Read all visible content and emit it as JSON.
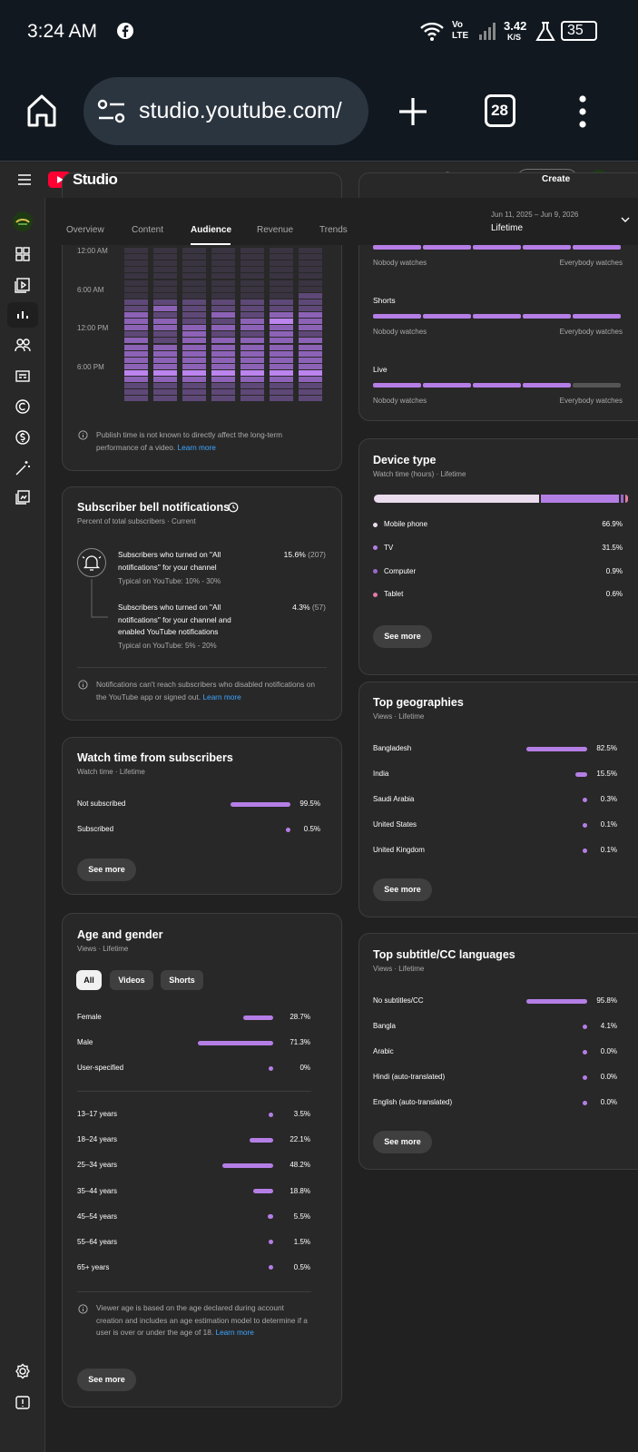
{
  "status_bar": {
    "time": "3:24 AM",
    "network_top": "Vo",
    "network_bottom": "LTE",
    "speed": "3.42",
    "speed_unit": "K/S",
    "battery": "35"
  },
  "browser": {
    "url": "studio.youtube.com/",
    "tab_count": "28"
  },
  "header": {
    "logo": "Studio",
    "create": "Create"
  },
  "tabs": {
    "items": [
      "Overview",
      "Content",
      "Audience",
      "Revenue",
      "Trends"
    ],
    "active": 2,
    "date_range": "Jun 11, 2025 – Jun 9, 2026",
    "period": "Lifetime"
  },
  "heatmap_card": {
    "row_labels": [
      "12:00 AM",
      "6:00 AM",
      "12:00 PM",
      "6:00 PM"
    ],
    "levels": [
      [
        1,
        1,
        1,
        1,
        1,
        1,
        1
      ],
      [
        1,
        1,
        1,
        1,
        1,
        1,
        1
      ],
      [
        1,
        1,
        1,
        1,
        1,
        1,
        1
      ],
      [
        1,
        1,
        1,
        1,
        1,
        1,
        1
      ],
      [
        1,
        1,
        1,
        1,
        1,
        1,
        1
      ],
      [
        1,
        1,
        1,
        1,
        1,
        1,
        1
      ],
      [
        1,
        1,
        1,
        1,
        1,
        1,
        1
      ],
      [
        1,
        1,
        1,
        1,
        1,
        1,
        2
      ],
      [
        2,
        2,
        2,
        2,
        2,
        2,
        2
      ],
      [
        2,
        3,
        2,
        2,
        2,
        2,
        2
      ],
      [
        3,
        2,
        2,
        3,
        2,
        3,
        3
      ],
      [
        3,
        3,
        2,
        2,
        3,
        4,
        3
      ],
      [
        3,
        3,
        3,
        3,
        3,
        3,
        3
      ],
      [
        2,
        2,
        3,
        2,
        2,
        3,
        2
      ],
      [
        3,
        2,
        3,
        3,
        3,
        3,
        3
      ],
      [
        3,
        3,
        3,
        3,
        3,
        3,
        3
      ],
      [
        3,
        3,
        3,
        3,
        3,
        3,
        3
      ],
      [
        3,
        3,
        3,
        3,
        3,
        3,
        3
      ],
      [
        3,
        3,
        3,
        3,
        3,
        3,
        3
      ],
      [
        4,
        4,
        4,
        4,
        4,
        4,
        4
      ],
      [
        3,
        3,
        3,
        3,
        3,
        3,
        3
      ],
      [
        2,
        2,
        2,
        2,
        2,
        2,
        2
      ],
      [
        2,
        2,
        2,
        2,
        2,
        2,
        2
      ],
      [
        2,
        2,
        2,
        2,
        2,
        2,
        2
      ]
    ],
    "note": "Publish time is not known to directly affect the long-term performance of a video.",
    "link": "Learn more"
  },
  "watch_bars_card": {
    "items": [
      {
        "low": "Nobody watches",
        "high": "Everybody watches",
        "segments": 5,
        "filled": 5
      },
      {
        "label": "Shorts",
        "low": "Nobody watches",
        "high": "Everybody watches",
        "segments": 5,
        "filled": 5
      },
      {
        "label": "Live",
        "low": "Nobody watches",
        "high": "Everybody watches",
        "segments": 5,
        "filled": 4
      }
    ]
  },
  "bell_card": {
    "title": "Subscriber bell notifications",
    "subtitle": "Percent of total subscribers · Current",
    "items": [
      {
        "text": "Subscribers who turned on \"All notifications\" for your channel",
        "typical": "Typical on YouTube: 10% - 30%",
        "percent": "15.6%",
        "count": "(207)"
      },
      {
        "text": "Subscribers who turned on \"All notifications\" for your channel and enabled YouTube notifications",
        "typical": "Typical on YouTube: 5% - 20%",
        "percent": "4.3%",
        "count": "(57)"
      }
    ],
    "note": "Notifications can't reach subscribers who disabled notifications on the YouTube app or signed out.",
    "link": "Learn more"
  },
  "subscriber_watch_card": {
    "title": "Watch time from subscribers",
    "subtitle": "Watch time · Lifetime",
    "categories": [
      "Not subscribed",
      "Subscribed"
    ],
    "values": [
      99.5,
      0.5
    ],
    "value_labels": [
      "99.5%",
      "0.5%"
    ],
    "button": "See more"
  },
  "age_gender_card": {
    "title": "Age and gender",
    "subtitle": "Views · Lifetime",
    "filters": [
      "All",
      "Videos",
      "Shorts"
    ],
    "active_filter": 0,
    "gender": {
      "categories": [
        "Female",
        "Male",
        "User-specified"
      ],
      "values": [
        28.7,
        71.3,
        0
      ],
      "value_labels": [
        "28.7%",
        "71.3%",
        "0%"
      ]
    },
    "age": {
      "categories": [
        "13–17 years",
        "18–24 years",
        "25–34 years",
        "35–44 years",
        "45–54 years",
        "55–64 years",
        "65+ years"
      ],
      "values": [
        3.5,
        22.1,
        48.2,
        18.8,
        5.5,
        1.5,
        0.5
      ],
      "value_labels": [
        "3.5%",
        "22.1%",
        "48.2%",
        "18.8%",
        "5.5%",
        "1.5%",
        "0.5%"
      ]
    },
    "note": "Viewer age is based on the age declared during account creation and includes an age estimation model to determine if a user is over or under the age of 18.",
    "link": "Learn more",
    "button": "See more"
  },
  "device_card": {
    "title": "Device type",
    "subtitle": "Watch time (hours) · Lifetime",
    "categories": [
      "Mobile phone",
      "TV",
      "Computer",
      "Tablet"
    ],
    "values": [
      66.9,
      31.5,
      0.9,
      0.6
    ],
    "value_labels": [
      "66.9%",
      "31.5%",
      "0.9%",
      "0.6%"
    ],
    "colors": [
      "#eadcec",
      "#b37fe4",
      "#9a69c8",
      "#e27aa8"
    ],
    "button": "See more"
  },
  "geo_card": {
    "title": "Top geographies",
    "subtitle": "Views · Lifetime",
    "categories": [
      "Bangladesh",
      "India",
      "Saudi Arabia",
      "United States",
      "United Kingdom"
    ],
    "values": [
      82.5,
      15.5,
      0.3,
      0.1,
      0.1
    ],
    "value_labels": [
      "82.5%",
      "15.5%",
      "0.3%",
      "0.1%",
      "0.1%"
    ],
    "button": "See more"
  },
  "subtitle_card": {
    "title": "Top subtitle/CC languages",
    "subtitle": "Views · Lifetime",
    "categories": [
      "No subtitles/CC",
      "Bangla",
      "Arabic",
      "Hindi (auto-translated)",
      "English (auto-translated)"
    ],
    "values": [
      95.8,
      4.1,
      0,
      0,
      0
    ],
    "value_labels": [
      "95.8%",
      "4.1%",
      "0.0%",
      "0.0%",
      "0.0%"
    ],
    "button": "See more"
  }
}
